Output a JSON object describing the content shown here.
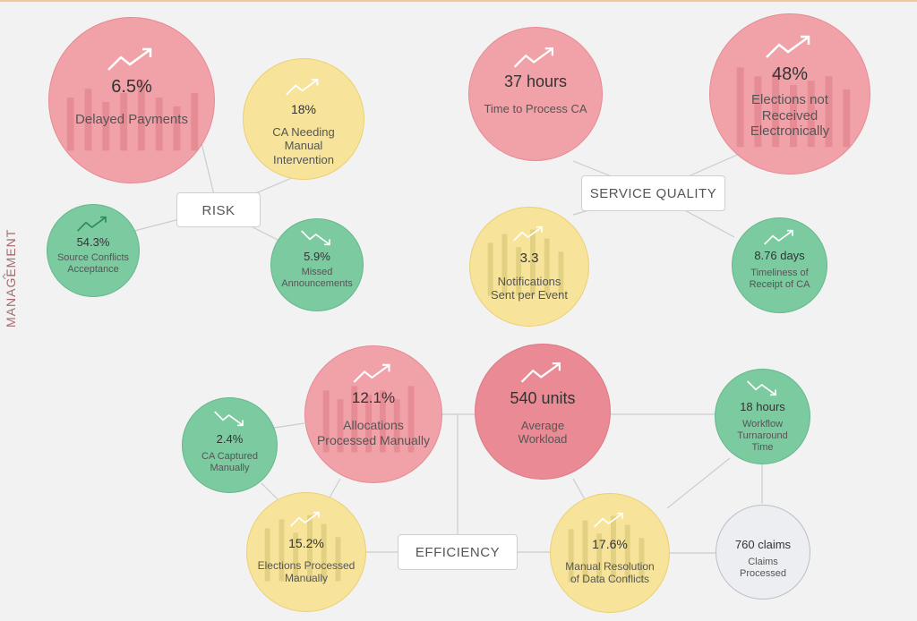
{
  "sidebar": {
    "section_label": "MANAGEMENT",
    "collapse_icon": "chevron-left-icon"
  },
  "groups": {
    "risk": "RISK",
    "service_quality": "SERVICE QUALITY",
    "efficiency": "EFFICIENCY"
  },
  "kpis": {
    "delayed_payments": {
      "value": "6.5%",
      "label": "Delayed Payments",
      "trend": "up",
      "status": "red"
    },
    "ca_manual_intervention": {
      "value": "18%",
      "label": "CA Needing Manual Intervention",
      "trend": "up",
      "status": "yellow"
    },
    "source_conflicts": {
      "value": "54.3%",
      "label": "Source Conflicts Acceptance",
      "trend": "up",
      "status": "green"
    },
    "missed_announcements": {
      "value": "5.9%",
      "label": "Missed Announcements",
      "trend": "down",
      "status": "green"
    },
    "time_to_process": {
      "value": "37 hours",
      "label": "Time to Process CA",
      "trend": "up",
      "status": "red"
    },
    "elections_not_received": {
      "value": "48%",
      "label": "Elections not Received Electronically",
      "trend": "up",
      "status": "red"
    },
    "notifications_sent": {
      "value": "3.3",
      "label": "Notifications Sent per Event",
      "trend": "up",
      "status": "yellow"
    },
    "timeliness_receipt": {
      "value": "8.76 days",
      "label": "Timeliness of Receipt of CA",
      "trend": "up",
      "status": "green"
    },
    "ca_captured_manually": {
      "value": "2.4%",
      "label": "CA Captured Manually",
      "trend": "down",
      "status": "green"
    },
    "allocations_manual": {
      "value": "12.1%",
      "label": "Allocations Processed Manually",
      "trend": "up",
      "status": "red"
    },
    "average_workload": {
      "value": "540 units",
      "label": "Average Workload",
      "trend": "up",
      "status": "red"
    },
    "workflow_turnaround": {
      "value": "18 hours",
      "label": "Workflow Turnaround Time",
      "trend": "down",
      "status": "green"
    },
    "elections_manual": {
      "value": "15.2%",
      "label": "Elections Processed Manually",
      "trend": "up",
      "status": "yellow"
    },
    "manual_resolution": {
      "value": "17.6%",
      "label": "Manual Resolution of Data Conflicts",
      "trend": "up",
      "status": "yellow"
    },
    "claims_processed": {
      "value": "760 claims",
      "label": "Claims Processed",
      "trend": "",
      "status": "grey"
    }
  },
  "colors": {
    "red": "#f1a2a9",
    "yellow": "#f7e49a",
    "green": "#7ccaa0",
    "grey": "#eceef1",
    "link": "#cccccc"
  }
}
